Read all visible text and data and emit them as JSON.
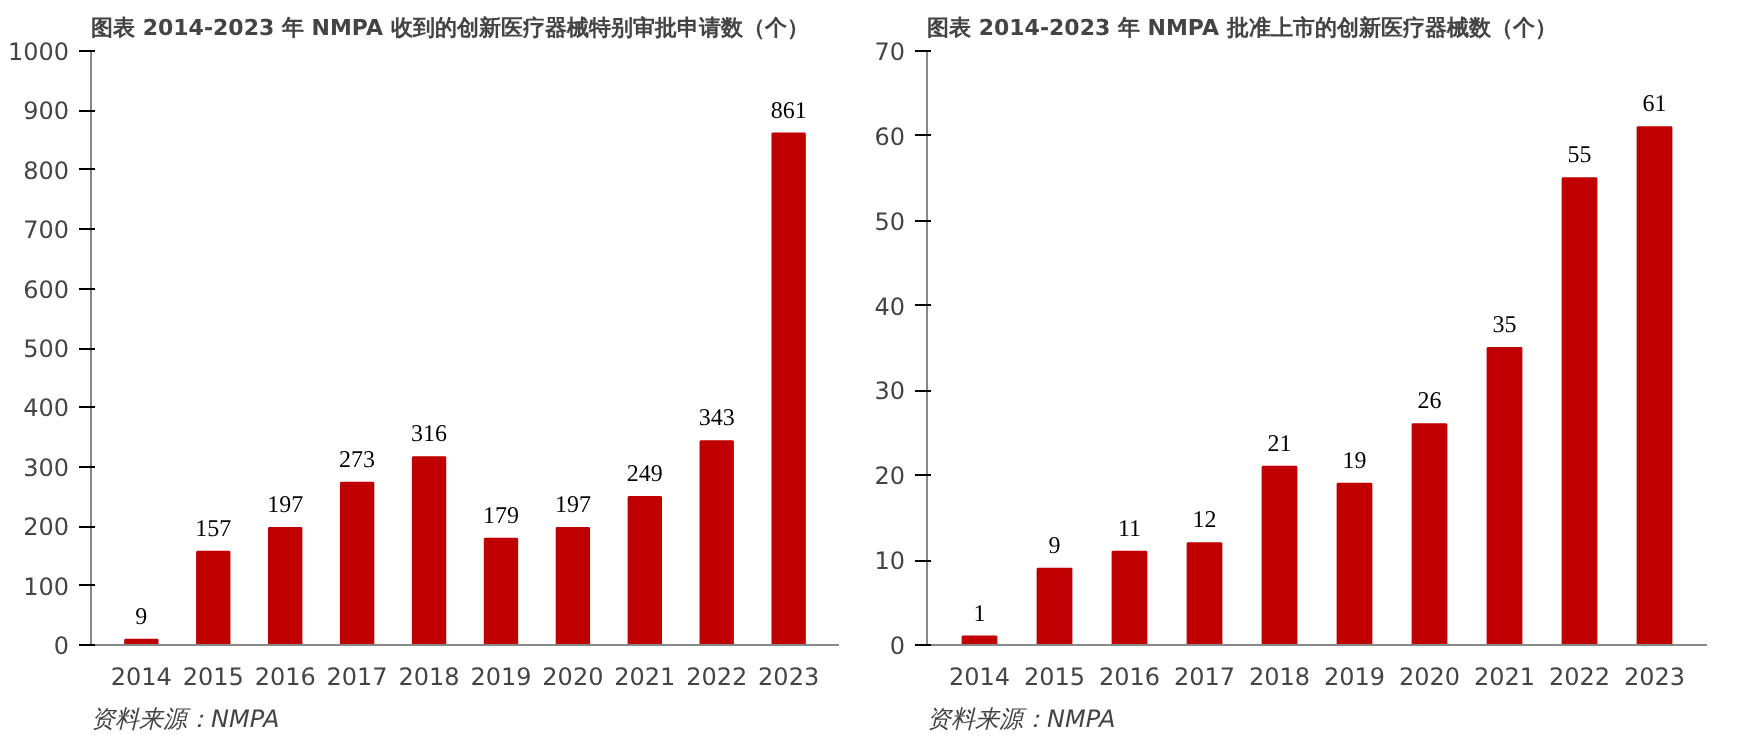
{
  "chart_data": [
    {
      "type": "bar",
      "title": "图表 2014-2023 年 NMPA 收到的创新医疗器械特别审批申请数（个）",
      "categories": [
        "2014",
        "2015",
        "2016",
        "2017",
        "2018",
        "2019",
        "2020",
        "2021",
        "2022",
        "2023"
      ],
      "values": [
        9,
        157,
        197,
        273,
        316,
        179,
        197,
        249,
        343,
        861
      ],
      "color": "#c00000",
      "ylim": [
        0,
        1000
      ],
      "yticks": [
        0,
        100,
        200,
        300,
        400,
        500,
        600,
        700,
        800,
        900,
        1000
      ],
      "grid": false,
      "data_labels": true,
      "annotations": [
        "资料来源：NMPA"
      ]
    },
    {
      "type": "bar",
      "title": "图表 2014-2023 年 NMPA 批准上市的创新医疗器械数（个）",
      "categories": [
        "2014",
        "2015",
        "2016",
        "2017",
        "2018",
        "2019",
        "2020",
        "2021",
        "2022",
        "2023"
      ],
      "values": [
        1,
        9,
        11,
        12,
        21,
        19,
        26,
        35,
        55,
        61
      ],
      "color": "#c00000",
      "ylim": [
        0,
        70
      ],
      "yticks": [
        0,
        10,
        20,
        30,
        40,
        50,
        60,
        70
      ],
      "grid": false,
      "data_labels": true,
      "annotations": [
        "资料来源：NMPA"
      ]
    }
  ]
}
